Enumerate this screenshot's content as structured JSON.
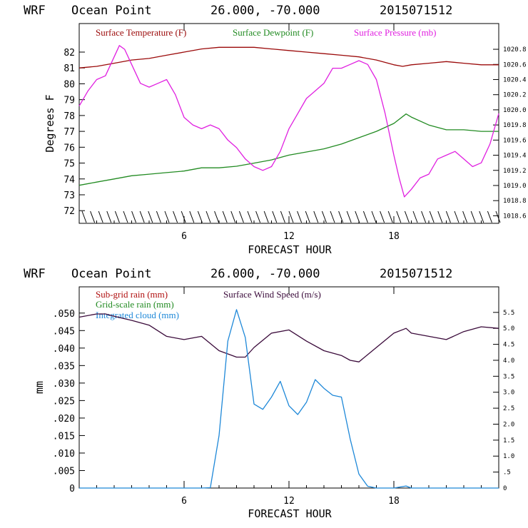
{
  "panels": [
    {
      "header": {
        "model": "WRF",
        "location": "Ocean Point",
        "coords": "26.000, -70.000",
        "run": "2015071512"
      },
      "legend": [
        {
          "text": "Surface Temperature (F)",
          "color": "#9b0a0a"
        },
        {
          "text": "Surface Dewpoint (F)",
          "color": "#228b22"
        },
        {
          "text": "Surface Pressure (mb)",
          "color": "#e020e0"
        }
      ],
      "xlabel": "FORECAST HOUR",
      "ylabel": "Degrees F"
    },
    {
      "header": {
        "model": "WRF",
        "location": "Ocean Point",
        "coords": "26.000, -70.000",
        "run": "2015071512"
      },
      "legend": [
        {
          "text": "Sub-grid rain (mm)",
          "color": "#b01010"
        },
        {
          "text": "Surface Wind Speed (m/s)",
          "color": "#3a0a3a"
        },
        {
          "text": "Grid-scale rain (mm)",
          "color": "#228b22"
        },
        {
          "text": "Integrated cloud (mm)",
          "color": "#1e88d8"
        }
      ],
      "xlabel": "FORECAST HOUR",
      "ylabel": "mm"
    }
  ],
  "chart_data": [
    {
      "type": "line",
      "xlim": [
        0,
        24
      ],
      "xticks": [
        "6",
        "12",
        "18"
      ],
      "xtick_values": [
        6,
        12,
        18
      ],
      "ylim": [
        71.2,
        83.8
      ],
      "yticks": [
        "72",
        "73",
        "74",
        "75",
        "76",
        "77",
        "78",
        "79",
        "80",
        "81",
        "82"
      ],
      "ytick_values": [
        72,
        73,
        74,
        75,
        76,
        77,
        78,
        79,
        80,
        81,
        82
      ],
      "y2lim": [
        1018.5,
        1021.14
      ],
      "y2ticks": [
        "1018.6",
        "1018.8",
        "1019.0",
        "1019.2",
        "1019.4",
        "1019.6",
        "1019.8",
        "1020.0",
        "1020.2",
        "1020.4",
        "1020.6",
        "1020.8"
      ],
      "y2tick_values": [
        1018.6,
        1018.8,
        1019.0,
        1019.2,
        1019.4,
        1019.6,
        1019.8,
        1020.0,
        1020.2,
        1020.4,
        1020.6,
        1020.8
      ],
      "series": [
        {
          "name": "Surface Temperature (F)",
          "axis": "left",
          "color": "#9b0a0a",
          "x": [
            0,
            1,
            2,
            3,
            4,
            5,
            6,
            7,
            8,
            9,
            10,
            11,
            12,
            13,
            14,
            15,
            16,
            17,
            18,
            18.5,
            19,
            20,
            21,
            22,
            23,
            24
          ],
          "y": [
            81.0,
            81.1,
            81.3,
            81.5,
            81.6,
            81.8,
            82.0,
            82.2,
            82.3,
            82.3,
            82.3,
            82.2,
            82.1,
            82.0,
            81.9,
            81.8,
            81.7,
            81.5,
            81.2,
            81.1,
            81.2,
            81.3,
            81.4,
            81.3,
            81.2,
            81.2
          ]
        },
        {
          "name": "Surface Dewpoint (F)",
          "axis": "left",
          "color": "#228b22",
          "x": [
            0,
            1,
            2,
            3,
            4,
            5,
            6,
            7,
            8,
            9,
            10,
            11,
            12,
            13,
            14,
            15,
            16,
            17,
            18,
            18.7,
            19,
            20,
            21,
            22,
            23,
            24
          ],
          "y": [
            73.6,
            73.8,
            74.0,
            74.2,
            74.3,
            74.4,
            74.5,
            74.7,
            74.7,
            74.8,
            75.0,
            75.2,
            75.5,
            75.7,
            75.9,
            76.2,
            76.6,
            77.0,
            77.5,
            78.1,
            77.9,
            77.4,
            77.1,
            77.1,
            77.0,
            77.0
          ]
        },
        {
          "name": "Surface Pressure (mb)",
          "axis": "right",
          "color": "#e020e0",
          "x": [
            0,
            0.5,
            1,
            1.5,
            2,
            2.3,
            2.6,
            3,
            3.5,
            4,
            4.5,
            5,
            5.5,
            6,
            6.5,
            7,
            7.5,
            8,
            8.5,
            9,
            9.5,
            10,
            10.5,
            11,
            11.5,
            12,
            12.5,
            13,
            13.5,
            14,
            14.5,
            15,
            15.5,
            16,
            16.5,
            17,
            17.5,
            18,
            18.3,
            18.6,
            19,
            19.5,
            20,
            20.5,
            21,
            21.5,
            22,
            22.5,
            23,
            23.5,
            24
          ],
          "y": [
            1020.05,
            1020.25,
            1020.4,
            1020.45,
            1020.7,
            1020.85,
            1020.8,
            1020.6,
            1020.35,
            1020.3,
            1020.35,
            1020.4,
            1020.2,
            1019.9,
            1019.8,
            1019.75,
            1019.8,
            1019.75,
            1019.6,
            1019.5,
            1019.35,
            1019.25,
            1019.2,
            1019.25,
            1019.45,
            1019.75,
            1019.95,
            1020.15,
            1020.25,
            1020.35,
            1020.55,
            1020.55,
            1020.6,
            1020.65,
            1020.6,
            1020.4,
            1019.95,
            1019.4,
            1019.1,
            1018.85,
            1018.95,
            1019.1,
            1019.15,
            1019.35,
            1019.4,
            1019.45,
            1019.35,
            1019.25,
            1019.3,
            1019.55,
            1019.95
          ]
        }
      ]
    },
    {
      "type": "line",
      "xlim": [
        0,
        24
      ],
      "xticks": [
        "6",
        "12",
        "18"
      ],
      "xtick_values": [
        6,
        12,
        18
      ],
      "ylim": [
        0,
        0.0575
      ],
      "yticks": [
        "0",
        ".005",
        ".010",
        ".015",
        ".020",
        ".025",
        ".030",
        ".035",
        ".040",
        ".045",
        ".050"
      ],
      "ytick_values": [
        0,
        0.005,
        0.01,
        0.015,
        0.02,
        0.025,
        0.03,
        0.035,
        0.04,
        0.045,
        0.05
      ],
      "y2lim": [
        0,
        6.3
      ],
      "y2ticks": [
        "0",
        ".5",
        "1.0",
        "1.5",
        "2.0",
        "2.5",
        "3.0",
        "3.5",
        "4.0",
        "4.5",
        "5.0",
        "5.5"
      ],
      "y2tick_values": [
        0,
        0.5,
        1.0,
        1.5,
        2.0,
        2.5,
        3.0,
        3.5,
        4.0,
        4.5,
        5.0,
        5.5
      ],
      "series": [
        {
          "name": "Surface Wind Speed (m/s)",
          "axis": "right",
          "color": "#3a0a3a",
          "x": [
            0,
            1,
            1.5,
            2,
            3,
            4,
            5,
            6,
            7,
            8,
            8.5,
            9,
            9.5,
            10,
            11,
            12,
            13,
            14,
            15,
            15.5,
            16,
            17,
            18,
            18.7,
            19,
            20,
            21,
            22,
            23,
            24
          ],
          "y": [
            5.35,
            5.45,
            5.45,
            5.38,
            5.25,
            5.1,
            4.75,
            4.65,
            4.75,
            4.3,
            4.2,
            4.1,
            4.1,
            4.4,
            4.85,
            4.95,
            4.6,
            4.3,
            4.15,
            4.0,
            3.95,
            4.4,
            4.85,
            5.0,
            4.85,
            4.75,
            4.65,
            4.9,
            5.05,
            5.0
          ]
        },
        {
          "name": "Integrated cloud (mm)",
          "axis": "left",
          "color": "#1e88d8",
          "x": [
            0,
            7,
            7.5,
            8,
            8.5,
            9,
            9.5,
            10,
            10.5,
            11,
            11.5,
            12,
            12.5,
            13,
            13.5,
            14,
            14.5,
            15,
            15.5,
            16,
            16.5,
            17,
            18,
            18.7,
            19,
            24
          ],
          "y": [
            0,
            0,
            0.0001,
            0.015,
            0.042,
            0.051,
            0.043,
            0.024,
            0.0225,
            0.026,
            0.0305,
            0.0235,
            0.021,
            0.0245,
            0.031,
            0.0285,
            0.0265,
            0.026,
            0.014,
            0.004,
            0.0005,
            0,
            0,
            0.0006,
            0,
            0
          ]
        }
      ]
    }
  ]
}
